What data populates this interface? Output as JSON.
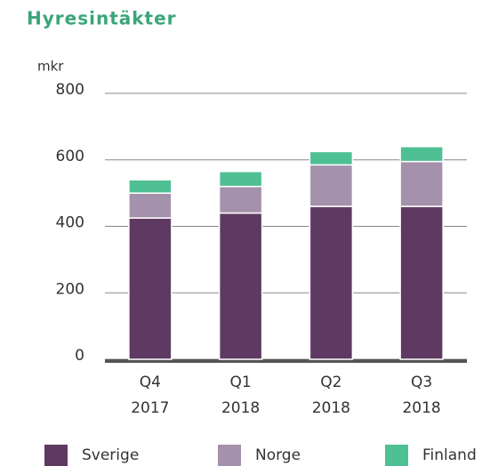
{
  "chart_data": {
    "type": "stacked_bar",
    "title": "Hyresintäkter",
    "y_label": "mkr",
    "categories": [
      "Q4 2017",
      "Q1 2018",
      "Q2 2018",
      "Q3 2018"
    ],
    "series": [
      {
        "name": "Sverige",
        "color": "#5e3a63",
        "values": [
          425,
          440,
          460,
          460
        ]
      },
      {
        "name": "Norge",
        "color": "#a491ab",
        "values": [
          75,
          80,
          125,
          135
        ]
      },
      {
        "name": "Finland",
        "color": "#4fbf94",
        "values": [
          40,
          45,
          40,
          45
        ]
      }
    ],
    "ylim": [
      0,
      800
    ],
    "yticks": [
      0,
      200,
      400,
      600,
      800
    ],
    "grid": true,
    "legend": "bottom"
  }
}
